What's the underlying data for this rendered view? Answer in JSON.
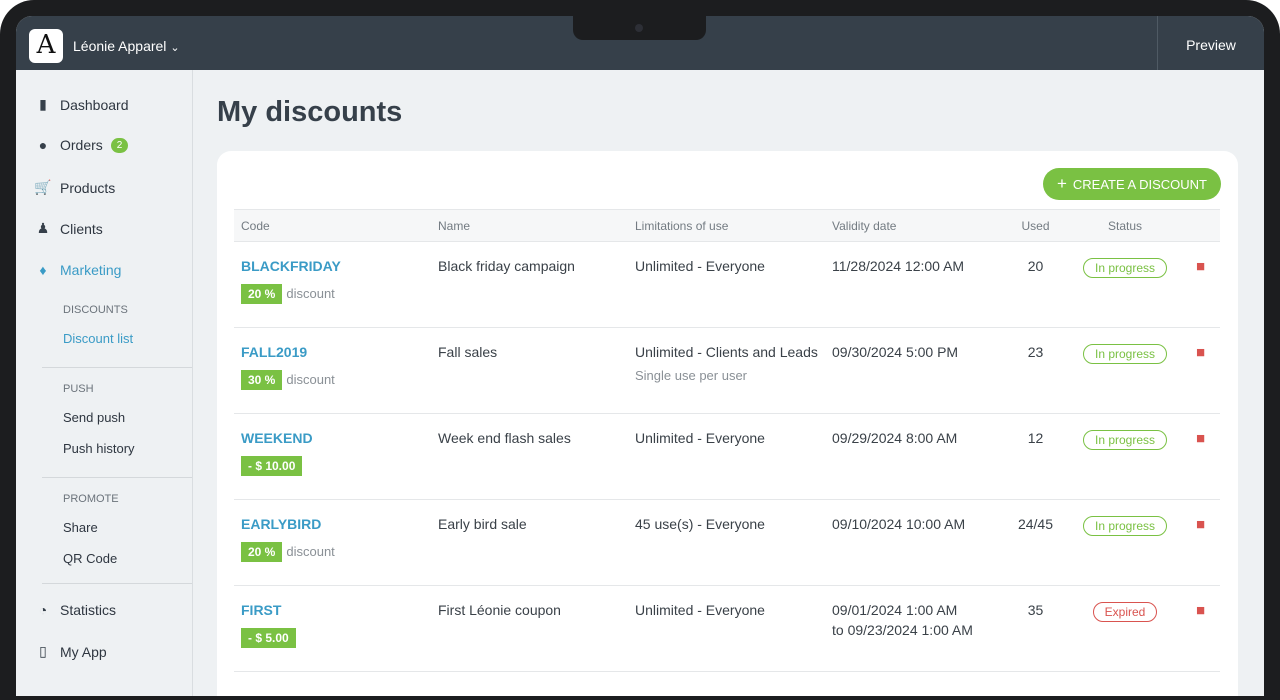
{
  "header": {
    "logo_text": "A",
    "brand": "Léonie Apparel",
    "preview": "Preview"
  },
  "sidebar": {
    "items": [
      {
        "label": "Dashboard",
        "icon": "bar-chart-icon"
      },
      {
        "label": "Orders",
        "icon": "dollar-icon",
        "badge": "2"
      },
      {
        "label": "Products",
        "icon": "cart-icon"
      },
      {
        "label": "Clients",
        "icon": "people-icon"
      },
      {
        "label": "Marketing",
        "icon": "bell-icon"
      }
    ],
    "discounts_section": "DISCOUNTS",
    "discount_list": "Discount list",
    "push_section": "PUSH",
    "send_push": "Send push",
    "push_history": "Push history",
    "promote_section": "PROMOTE",
    "share": "Share",
    "qr_code": "QR Code",
    "statistics": "Statistics",
    "my_app": "My App"
  },
  "page": {
    "title": "My discounts",
    "create_button": "CREATE A DISCOUNT"
  },
  "table": {
    "headers": [
      "Code",
      "Name",
      "Limitations of use",
      "Validity date",
      "Used",
      "Status"
    ],
    "rows": [
      {
        "code": "BLACKFRIDAY",
        "amount": "20 %",
        "suffix": "discount",
        "name": "Black friday campaign",
        "limit": "Unlimited - Everyone",
        "limit2": "",
        "date": "11/28/2024 12:00 AM",
        "date2": "",
        "used": "20",
        "status": "In progress"
      },
      {
        "code": "FALL2019",
        "amount": "30 %",
        "suffix": "discount",
        "name": "Fall sales",
        "limit": "Unlimited - Clients and Leads",
        "limit2": "Single use per user",
        "date": "09/30/2024 5:00 PM",
        "date2": "",
        "used": "23",
        "status": "In progress"
      },
      {
        "code": "WEEKEND",
        "amount": "- $ 10.00",
        "suffix": "",
        "name": "Week end flash sales",
        "limit": "Unlimited - Everyone",
        "limit2": "",
        "date": "09/29/2024 8:00 AM",
        "date2": "",
        "used": "12",
        "status": "In progress"
      },
      {
        "code": "EARLYBIRD",
        "amount": "20 %",
        "suffix": "discount",
        "name": "Early bird sale",
        "limit": "45 use(s) - Everyone",
        "limit2": "",
        "date": "09/10/2024 10:00 AM",
        "date2": "",
        "used": "24/45",
        "status": "In progress"
      },
      {
        "code": "FIRST",
        "amount": "- $ 5.00",
        "suffix": "",
        "name": "First Léonie coupon",
        "limit": "Unlimited - Everyone",
        "limit2": "",
        "date": "09/01/2024 1:00 AM",
        "date2": "to 09/23/2024 1:00 AM",
        "used": "35",
        "status": "Expired"
      }
    ]
  },
  "colors": {
    "accent": "#7ac143",
    "link": "#3a9bc6",
    "danger": "#d9534f",
    "header": "#36404a"
  }
}
